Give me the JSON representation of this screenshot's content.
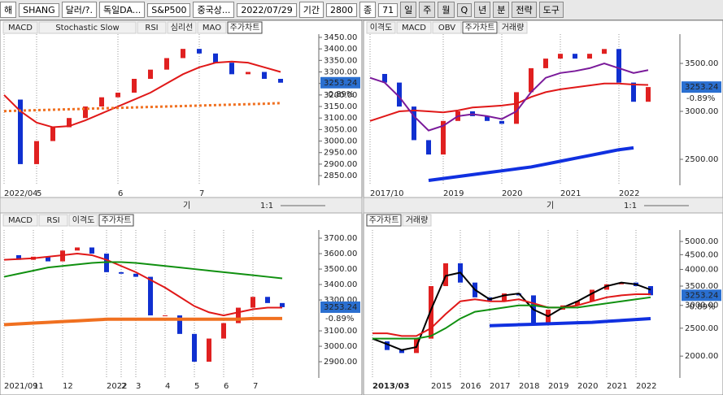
{
  "toolbar": {
    "items": [
      "해",
      "SHANG",
      "달러/?.",
      "독일DA...",
      "S&P500",
      "중국상...",
      "2022/07/29",
      "기간",
      "2800",
      "종",
      "71"
    ],
    "periods": [
      "일",
      "주",
      "월",
      "Q",
      "년",
      "분"
    ],
    "menus": [
      "전략",
      "도구"
    ]
  },
  "controls": {
    "label": "기",
    "ratio": "1:1"
  },
  "chart_data": [
    {
      "type": "candlestick",
      "tabs": [
        "MACD",
        "Stochastic Slow",
        "RSI",
        "심리선",
        "MAO",
        "주가차트"
      ],
      "active_tab": 5,
      "categories": [
        "2022/04",
        null,
        "5",
        null,
        null,
        null,
        null,
        "6",
        null,
        null,
        null,
        null,
        "7",
        null,
        null,
        null,
        null,
        null
      ],
      "ylim": [
        2808,
        3464
      ],
      "yticks": [
        {
          "value": 3450,
          "label": "3450.00"
        },
        {
          "value": 3400,
          "label": "3400.00"
        },
        {
          "value": 3350,
          "label": "3350.00"
        },
        {
          "value": 3300,
          "label": "3300.00"
        },
        {
          "value": 3250,
          "label": "3250.00"
        },
        {
          "value": 3200,
          "label": "3200.00"
        },
        {
          "value": 3150,
          "label": "3150.00"
        },
        {
          "value": 3100,
          "label": "3100.00"
        },
        {
          "value": 3050,
          "label": "3050.00"
        },
        {
          "value": 3000,
          "label": "3000.00"
        },
        {
          "value": 2950,
          "label": "2950.00"
        },
        {
          "value": 2900,
          "label": "2900.00"
        },
        {
          "value": 2850,
          "label": "2850.00"
        }
      ],
      "last_price": 3253.24,
      "change": "-0.89%",
      "series": [
        {
          "kind": "candle",
          "up_color": "#e02020",
          "down_color": "#1030d0",
          "values": [
            3180,
            2900,
            3000,
            3060,
            3100,
            3150,
            3190,
            3210,
            3270,
            3310,
            3360,
            3400,
            3380,
            3340,
            3290,
            3300,
            3270,
            3253.24
          ]
        },
        {
          "kind": "line",
          "color": "#e01818",
          "width": 2,
          "values": [
            3200,
            3130,
            3080,
            3060,
            3065,
            3090,
            3120,
            3150,
            3180,
            3210,
            3250,
            3290,
            3320,
            3340,
            3345,
            3340,
            3320,
            3300
          ]
        },
        {
          "kind": "line",
          "color": "#f07020",
          "width": 3,
          "dashed": true,
          "values": [
            3130,
            3132,
            3134,
            3136,
            3138,
            3140,
            3142,
            3144,
            3146,
            3148,
            3150,
            3152,
            3154,
            3156,
            3158,
            3160,
            3162,
            3165
          ]
        }
      ]
    },
    {
      "type": "candlestick",
      "tabs": [
        "이격도",
        "MACD",
        "OBV",
        "주가차트",
        "거래량"
      ],
      "active_tab": 3,
      "categories": [
        "2017/10",
        null,
        null,
        null,
        null,
        "2019",
        null,
        null,
        null,
        "2020",
        null,
        null,
        null,
        "2021",
        null,
        null,
        null,
        "2022",
        null,
        null
      ],
      "ylim": [
        2229,
        3805
      ],
      "yticks": [
        {
          "value": 3500,
          "label": "3500.00"
        },
        {
          "value": 3000,
          "label": "3000.00"
        },
        {
          "value": 2500,
          "label": "2500.00"
        }
      ],
      "last_price": 3253.24,
      "change": "-0.89%",
      "series": [
        {
          "kind": "candle",
          "up_color": "#e02020",
          "down_color": "#1030d0",
          "values": [
            3390,
            3300,
            3050,
            2700,
            2550,
            2900,
            3000,
            2950,
            2900,
            2870,
            3200,
            3450,
            3550,
            3600,
            3550,
            3600,
            3650,
            3300,
            3100,
            3253.24
          ]
        },
        {
          "kind": "line",
          "color": "#e01818",
          "width": 2,
          "values": [
            2900,
            2950,
            3000,
            3010,
            3000,
            2990,
            3010,
            3040,
            3050,
            3060,
            3080,
            3150,
            3200,
            3230,
            3250,
            3270,
            3290,
            3290,
            3280,
            3275
          ]
        },
        {
          "kind": "line",
          "color": "#7a1a9a",
          "width": 2,
          "values": [
            3350,
            3300,
            3150,
            2950,
            2800,
            2850,
            2950,
            2970,
            2950,
            2920,
            3000,
            3200,
            3350,
            3400,
            3420,
            3450,
            3500,
            3450,
            3400,
            3430
          ]
        },
        {
          "kind": "line",
          "color": "#1030e0",
          "width": 4,
          "values": [
            null,
            null,
            null,
            null,
            2280,
            2300,
            2320,
            2340,
            2360,
            2380,
            2400,
            2420,
            2450,
            2480,
            2510,
            2540,
            2570,
            2600,
            2620,
            null
          ]
        }
      ]
    },
    {
      "type": "candlestick",
      "tabs": [
        "MACD",
        "RSI",
        "이격도",
        "주가차트"
      ],
      "active_tab": 3,
      "categories": [
        "2021/09",
        null,
        "11",
        null,
        "12",
        null,
        null,
        "2022",
        "2",
        "3",
        null,
        "4",
        null,
        "5",
        null,
        "6",
        null,
        "7",
        null,
        null
      ],
      "ylim": [
        2795,
        3753
      ],
      "yticks": [
        {
          "value": 3700,
          "label": "3700.00"
        },
        {
          "value": 3600,
          "label": "3600.00"
        },
        {
          "value": 3500,
          "label": "3500.00"
        },
        {
          "value": 3400,
          "label": "3400.00"
        },
        {
          "value": 3300,
          "label": "3300.00"
        },
        {
          "value": 3100,
          "label": "3100.00"
        },
        {
          "value": 3000,
          "label": "3000.00"
        },
        {
          "value": 2900,
          "label": "2900.00"
        }
      ],
      "last_price": 3253.24,
      "change": "-0.89%",
      "series": [
        {
          "kind": "candle",
          "up_color": "#e02020",
          "down_color": "#1030d0",
          "values": [
            3590,
            3560,
            3580,
            3550,
            3620,
            3640,
            3600,
            3480,
            3470,
            3450,
            3200,
            3200,
            3080,
            2900,
            3050,
            3150,
            3250,
            3320,
            3280,
            3253.24
          ]
        },
        {
          "kind": "line",
          "color": "#e01818",
          "width": 2,
          "values": [
            3560,
            3565,
            3570,
            3580,
            3590,
            3600,
            3590,
            3560,
            3520,
            3480,
            3430,
            3380,
            3320,
            3260,
            3220,
            3200,
            3220,
            3240,
            3250,
            3250
          ]
        },
        {
          "kind": "line",
          "color": "#109010",
          "width": 2,
          "values": [
            3450,
            3470,
            3490,
            3510,
            3520,
            3530,
            3540,
            3545,
            3545,
            3540,
            3530,
            3520,
            3510,
            3500,
            3490,
            3480,
            3470,
            3460,
            3450,
            3440
          ]
        },
        {
          "kind": "line",
          "color": "#f07020",
          "width": 4,
          "values": [
            3140,
            3145,
            3150,
            3155,
            3160,
            3165,
            3170,
            3175,
            3175,
            3175,
            3175,
            3175,
            3175,
            3175,
            3175,
            3175,
            3175,
            3180,
            3180,
            3180
          ]
        }
      ]
    },
    {
      "type": "candlestick",
      "tabs": [
        "주가차트",
        "거래량"
      ],
      "active_tab": 0,
      "log": true,
      "categories": [
        "2013/03",
        null,
        null,
        null,
        "2015",
        null,
        "2016",
        null,
        "2017",
        null,
        "2018",
        null,
        "2019",
        null,
        "2020",
        null,
        "2021",
        null,
        "2022",
        null
      ],
      "ylim": [
        1680,
        5480
      ],
      "yticks": [
        {
          "value": 5000,
          "label": "5000.00"
        },
        {
          "value": 4500,
          "label": "4500.00"
        },
        {
          "value": 4000,
          "label": "4000.00"
        },
        {
          "value": 3500,
          "label": "3500.00"
        },
        {
          "value": 3000,
          "label": "3000.00"
        },
        {
          "value": 2500,
          "label": "2500.00"
        },
        {
          "value": 2000,
          "label": "2000.00"
        }
      ],
      "last_price": 3253.24,
      "change": "-0.89%",
      "series": [
        {
          "kind": "candle",
          "up_color": "#e02020",
          "down_color": "#1030d0",
          "values": [
            2250,
            2100,
            2050,
            2300,
            3500,
            4200,
            3600,
            3200,
            3100,
            3300,
            3250,
            2600,
            2900,
            3000,
            3100,
            3400,
            3550,
            3600,
            3500,
            3253.24
          ]
        },
        {
          "kind": "line",
          "color": "#000000",
          "width": 2,
          "values": [
            2300,
            2200,
            2100,
            2150,
            2900,
            3800,
            3900,
            3400,
            3150,
            3250,
            3300,
            2900,
            2750,
            2950,
            3100,
            3300,
            3500,
            3600,
            3550,
            3400
          ]
        },
        {
          "kind": "line",
          "color": "#e01818",
          "width": 2,
          "values": [
            2400,
            2400,
            2350,
            2350,
            2500,
            2800,
            3100,
            3150,
            3100,
            3100,
            3150,
            3050,
            2950,
            2950,
            3000,
            3100,
            3200,
            3250,
            3280,
            3280
          ]
        },
        {
          "kind": "line",
          "color": "#109010",
          "width": 2,
          "values": [
            2300,
            2300,
            2300,
            2300,
            2350,
            2500,
            2700,
            2850,
            2900,
            2950,
            3000,
            3000,
            2950,
            2950,
            2950,
            3000,
            3050,
            3100,
            3150,
            3200
          ]
        },
        {
          "kind": "line",
          "color": "#1030e0",
          "width": 4,
          "values": [
            null,
            null,
            null,
            null,
            null,
            null,
            null,
            null,
            2550,
            2560,
            2570,
            2580,
            2590,
            2600,
            2610,
            2620,
            2640,
            2660,
            2680,
            2700
          ]
        }
      ]
    }
  ]
}
